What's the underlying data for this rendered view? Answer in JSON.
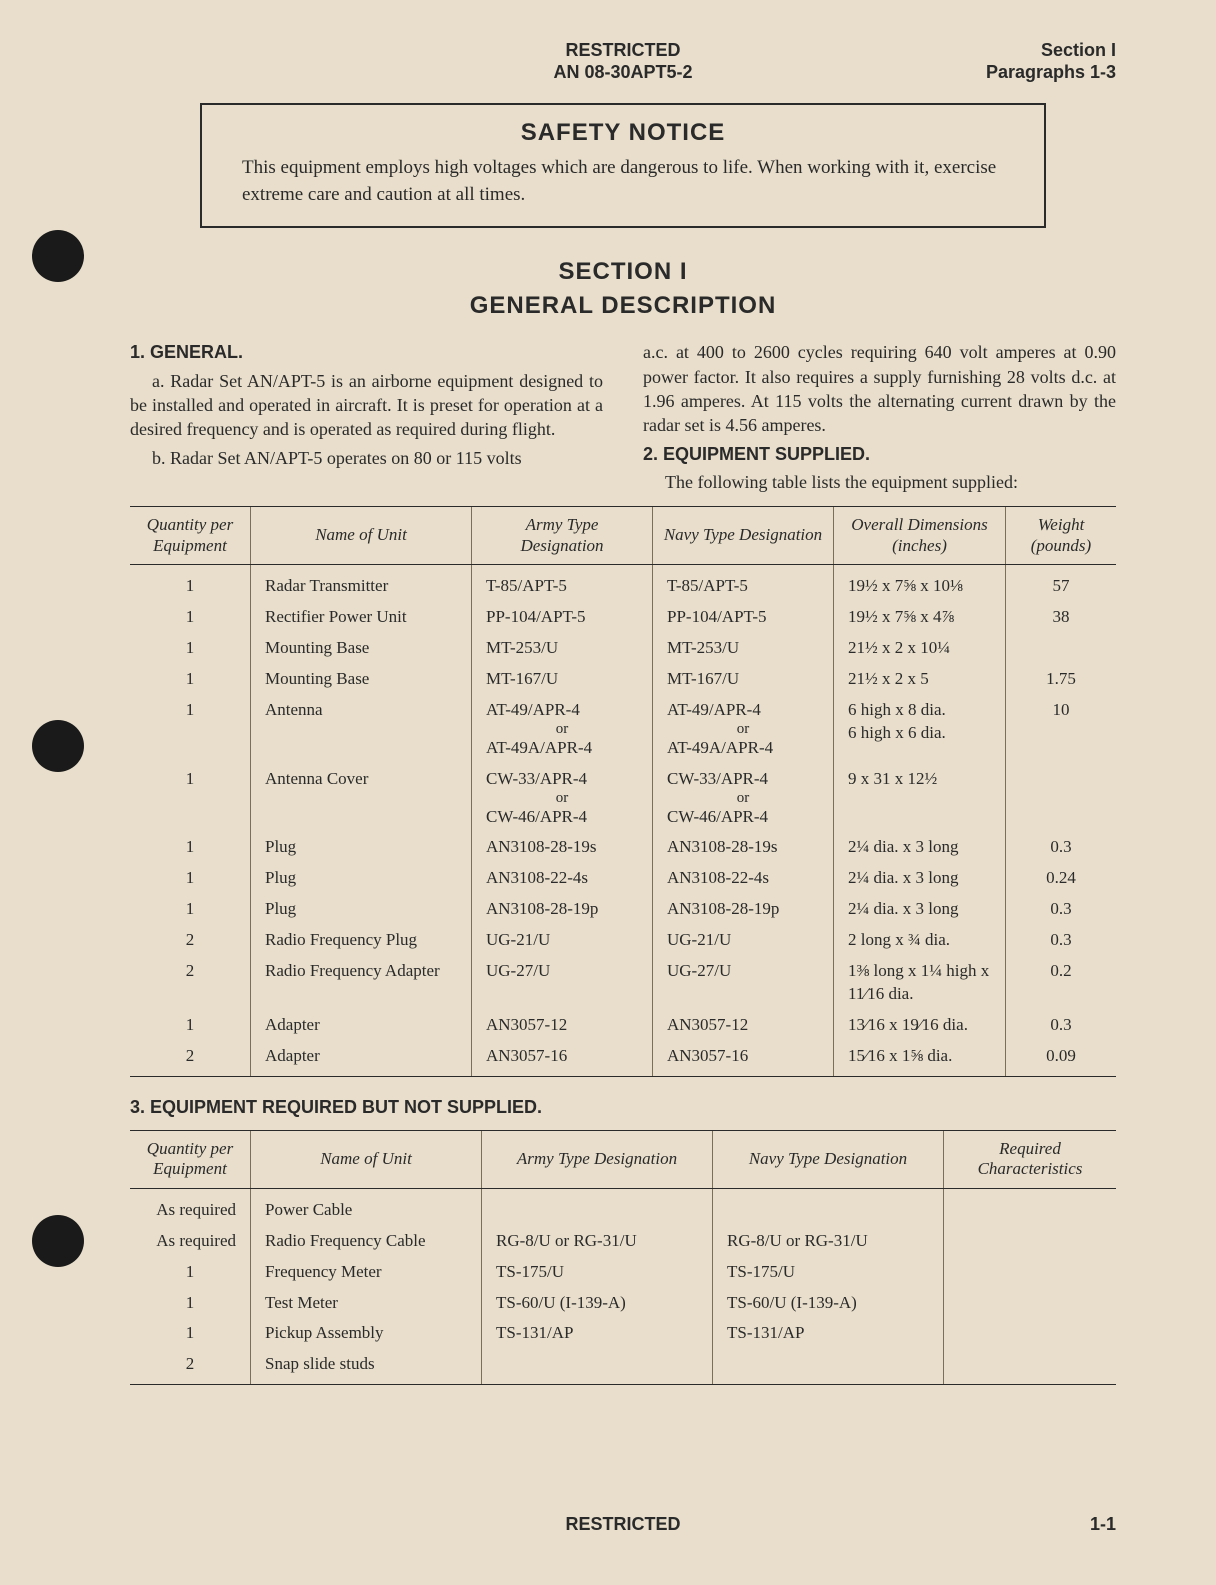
{
  "header": {
    "restricted": "RESTRICTED",
    "doc_number": "AN 08-30APT5-2",
    "section": "Section I",
    "paragraphs": "Paragraphs 1-3"
  },
  "notice": {
    "title": "SAFETY NOTICE",
    "body": "This equipment employs high voltages which are dangerous to life. When working with it, exercise extreme care and caution at all times."
  },
  "section_head": {
    "line1": "SECTION I",
    "line2": "GENERAL DESCRIPTION"
  },
  "para1": {
    "head": "1. GENERAL.",
    "a": "a. Radar Set AN/APT-5 is an airborne equipment designed to be installed and operated in aircraft. It is preset for operation at a desired frequency and is operated as required during flight.",
    "b_left": "b. Radar Set AN/APT-5 operates on 80 or 115 volts",
    "b_right": "a.c. at 400 to 2600 cycles requiring 640 volt amperes at 0.90 power factor. It also requires a supply furnishing 28 volts d.c. at 1.96 amperes. At 115 volts the alternating current drawn by the radar set is 4.56 amperes."
  },
  "para2": {
    "head": "2. EQUIPMENT SUPPLIED.",
    "intro": "The following table lists the equipment supplied:"
  },
  "table1": {
    "columns": [
      "Quantity per Equipment",
      "Name of Unit",
      "Army Type Designation",
      "Navy Type Designation",
      "Overall Dimensions (inches)",
      "Weight (pounds)"
    ],
    "rows": [
      {
        "qty": "1",
        "name": "Radar Transmitter",
        "army": "T-85/APT-5",
        "navy": "T-85/APT-5",
        "dim": "19½ x 7⅝ x 10⅛",
        "wt": "57"
      },
      {
        "qty": "1",
        "name": "Rectifier Power Unit",
        "army": "PP-104/APT-5",
        "navy": "PP-104/APT-5",
        "dim": "19½ x 7⅝ x 4⅞",
        "wt": "38"
      },
      {
        "qty": "1",
        "name": "Mounting Base",
        "army": "MT-253/U",
        "navy": "MT-253/U",
        "dim": "21½ x 2 x 10¼",
        "wt": ""
      },
      {
        "qty": "1",
        "name": "Mounting Base",
        "army": "MT-167/U",
        "navy": "MT-167/U",
        "dim": "21½ x 2 x 5",
        "wt": "1.75"
      },
      {
        "qty": "1",
        "name": "Antenna",
        "army": "AT-49/APR-4",
        "navy": "AT-49/APR-4",
        "dim": "6 high x 8 dia.",
        "wt": "10",
        "or": true,
        "army2": "AT-49A/APR-4",
        "navy2": "AT-49A/APR-4",
        "dim2": "6 high x 6 dia."
      },
      {
        "qty": "1",
        "name": "Antenna Cover",
        "army": "CW-33/APR-4",
        "navy": "CW-33/APR-4",
        "dim": "9 x 31 x 12½",
        "wt": "",
        "or": true,
        "army2": "CW-46/APR-4",
        "navy2": "CW-46/APR-4",
        "dim2": ""
      },
      {
        "qty": "1",
        "name": "Plug",
        "army": "AN3108-28-19s",
        "navy": "AN3108-28-19s",
        "dim": "2¼ dia. x 3 long",
        "wt": "0.3"
      },
      {
        "qty": "1",
        "name": "Plug",
        "army": "AN3108-22-4s",
        "navy": "AN3108-22-4s",
        "dim": "2¼ dia. x 3 long",
        "wt": "0.24"
      },
      {
        "qty": "1",
        "name": "Plug",
        "army": "AN3108-28-19p",
        "navy": "AN3108-28-19p",
        "dim": "2¼ dia. x 3 long",
        "wt": "0.3"
      },
      {
        "qty": "2",
        "name": "Radio Frequency Plug",
        "army": "UG-21/U",
        "navy": "UG-21/U",
        "dim": "2 long x ¾ dia.",
        "wt": "0.3"
      },
      {
        "qty": "2",
        "name": "Radio Frequency Adapter",
        "army": "UG-27/U",
        "navy": "UG-27/U",
        "dim": "1⅜ long x 1¼ high x 11⁄16 dia.",
        "wt": "0.2"
      },
      {
        "qty": "1",
        "name": "Adapter",
        "army": "AN3057-12",
        "navy": "AN3057-12",
        "dim": "13⁄16 x 19⁄16 dia.",
        "wt": "0.3"
      },
      {
        "qty": "2",
        "name": "Adapter",
        "army": "AN3057-16",
        "navy": "AN3057-16",
        "dim": "15⁄16 x 1⅝ dia.",
        "wt": "0.09"
      }
    ]
  },
  "para3": {
    "head": "3. EQUIPMENT REQUIRED BUT NOT SUPPLIED."
  },
  "table2": {
    "columns": [
      "Quantity per Equipment",
      "Name of Unit",
      "Army Type Designation",
      "Navy Type Designation",
      "Required Characteristics"
    ],
    "rows": [
      {
        "qty": "As required",
        "name": "Power Cable",
        "army": "",
        "navy": "",
        "req": ""
      },
      {
        "qty": "As required",
        "name": "Radio Frequency Cable",
        "army": "RG-8/U or RG-31/U",
        "navy": "RG-8/U or RG-31/U",
        "req": ""
      },
      {
        "qty": "1",
        "name": "Frequency Meter",
        "army": "TS-175/U",
        "navy": "TS-175/U",
        "req": ""
      },
      {
        "qty": "1",
        "name": "Test Meter",
        "army": "TS-60/U (I-139-A)",
        "navy": "TS-60/U (I-139-A)",
        "req": ""
      },
      {
        "qty": "1",
        "name": "Pickup Assembly",
        "army": "TS-131/AP",
        "navy": "TS-131/AP",
        "req": ""
      },
      {
        "qty": "2",
        "name": "Snap slide studs",
        "army": "",
        "navy": "",
        "req": ""
      }
    ]
  },
  "footer": {
    "restricted": "RESTRICTED",
    "page": "1-1"
  },
  "or_label": "or"
}
